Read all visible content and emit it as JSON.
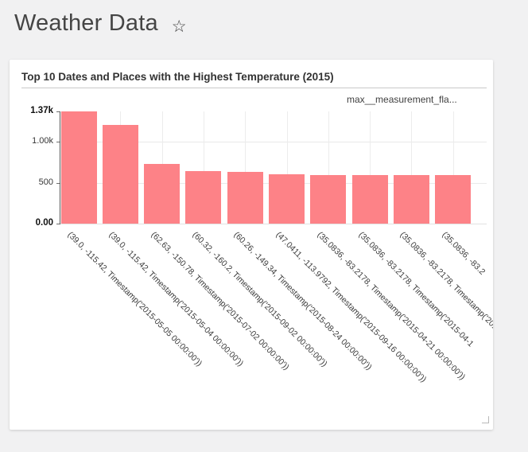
{
  "header": {
    "title": "Weather Data",
    "star_icon": "☆"
  },
  "card": {
    "title": "Top 10 Dates and Places with the Highest Temperature (2015)",
    "legend": {
      "label": "max__measurement_fla...",
      "color": "#fb636a"
    }
  },
  "chart_data": {
    "type": "bar",
    "title": "Top 10 Dates and Places with the Highest Temperature (2015)",
    "legend": [
      "max__measurement_fla..."
    ],
    "legend_position": "top-right",
    "bar_color": "#fd8287",
    "grid": true,
    "grid_values": [
      500,
      1000
    ],
    "ylim": [
      0,
      1370
    ],
    "yticks": [
      {
        "value": 0,
        "label": "0.00",
        "bold": true
      },
      {
        "value": 500,
        "label": "500",
        "bold": false
      },
      {
        "value": 1000,
        "label": "1.00k",
        "bold": false
      },
      {
        "value": 1370,
        "label": "1.37k",
        "bold": true
      }
    ],
    "categories": [
      "(39.0, -115.42, Timestamp('2015-05-05 00:00:00'))",
      "(39.0, -115.42, Timestamp('2015-05-04 00:00:00'))",
      "(62.63, -150.78, Timestamp('2015-07-02 00:00:00'))",
      "(60.32, -160.2, Timestamp('2015-09-02 00:00:00'))",
      "(60.26, -149.34, Timestamp('2015-08-24 00:00:00'))",
      "(47.0411, -113.9792, Timestamp('2015-09-16 00:00:00'))",
      "(35.0836, -83.2178, Timestamp('2015-04-21 00:00:00'))",
      "(35.0836, -83.2178, Timestamp('2015-04-1",
      "(35.0836, -83.2178, Timestamp('2015-0",
      "(35.0836, -83.2"
    ],
    "values": [
      1370,
      1200,
      725,
      640,
      630,
      600,
      595,
      592,
      591,
      590
    ],
    "xlabel": "",
    "ylabel": ""
  }
}
